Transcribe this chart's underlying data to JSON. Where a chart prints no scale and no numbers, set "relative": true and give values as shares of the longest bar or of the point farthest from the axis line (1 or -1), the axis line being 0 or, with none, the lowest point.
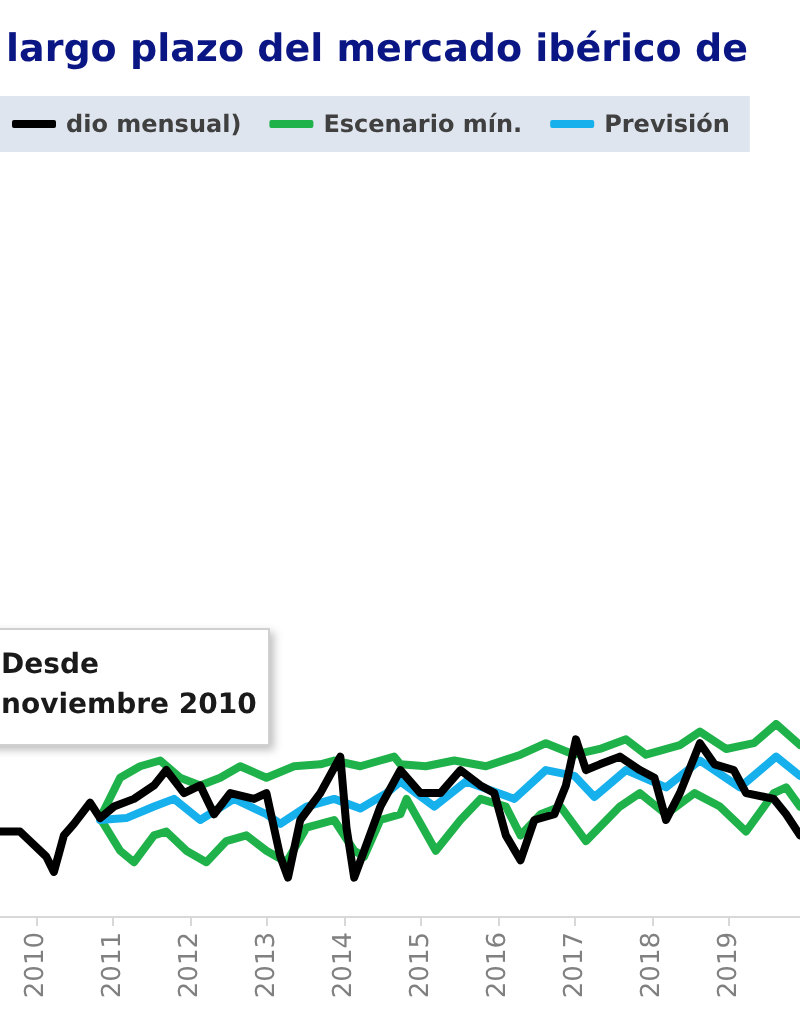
{
  "chart_data": {
    "type": "line",
    "title": "largo plazo del mercado ibérico de",
    "relative": true,
    "legend": "top",
    "xlim": [
      2009.53,
      2019.92
    ],
    "xticks": [
      2010,
      2011,
      2012,
      2013,
      2014,
      2015,
      2016,
      2017,
      2018,
      2019
    ],
    "annotations": [
      "Desde\nnoviembre 2010"
    ],
    "series": [
      {
        "name": "dio mensual)",
        "color": "#000000",
        "x": [
          2009.53,
          2009.79,
          2009.92,
          2010.13,
          2010.23,
          2010.36,
          2010.49,
          2010.7,
          2010.83,
          2011.01,
          2011.27,
          2011.53,
          2011.69,
          2011.92,
          2012.13,
          2012.31,
          2012.52,
          2012.83,
          2012.99,
          2013.17,
          2013.27,
          2013.43,
          2013.69,
          2013.95,
          2014.03,
          2014.13,
          2014.26,
          2014.47,
          2014.73,
          2014.99,
          2015.25,
          2015.51,
          2015.77,
          2015.95,
          2016.1,
          2016.29,
          2016.47,
          2016.73,
          2016.88,
          2017.01,
          2017.14,
          2017.32,
          2017.58,
          2017.84,
          2018.03,
          2018.18,
          2018.36,
          2018.62,
          2018.81,
          2019.06,
          2019.22,
          2019.58,
          2019.74,
          2019.92
        ],
        "values": [
          0.44,
          0.44,
          0.39,
          0.31,
          0.23,
          0.42,
          0.48,
          0.59,
          0.51,
          0.57,
          0.61,
          0.68,
          0.76,
          0.64,
          0.68,
          0.53,
          0.64,
          0.61,
          0.64,
          0.31,
          0.2,
          0.5,
          0.64,
          0.83,
          0.46,
          0.2,
          0.34,
          0.57,
          0.76,
          0.64,
          0.64,
          0.76,
          0.68,
          0.64,
          0.42,
          0.29,
          0.5,
          0.53,
          0.68,
          0.92,
          0.76,
          0.79,
          0.83,
          0.76,
          0.72,
          0.5,
          0.64,
          0.9,
          0.79,
          0.76,
          0.64,
          0.61,
          0.53,
          0.42
        ]
      },
      {
        "color": "#1fb24a",
        "x": [
          2010.83,
          2011.09,
          2011.35,
          2011.61,
          2011.87,
          2012.13,
          2012.39,
          2012.65,
          2012.99,
          2013.35,
          2013.69,
          2013.87,
          2014.21,
          2014.47,
          2014.65,
          2014.73,
          2015.06,
          2015.43,
          2015.84,
          2016.29,
          2016.62,
          2016.99,
          2017.32,
          2017.66,
          2017.92,
          2018.36,
          2018.62,
          2018.96,
          2019.32,
          2019.61,
          2019.92
        ],
        "values": [
          0.51,
          0.72,
          0.78,
          0.81,
          0.72,
          0.68,
          0.72,
          0.78,
          0.72,
          0.78,
          0.79,
          0.81,
          0.78,
          0.81,
          0.83,
          0.79,
          0.78,
          0.81,
          0.78,
          0.84,
          0.9,
          0.84,
          0.87,
          0.92,
          0.84,
          0.89,
          0.96,
          0.87,
          0.9,
          1.0,
          0.89
        ]
      },
      {
        "name": "Escenario mín.",
        "color": "#1fb24a",
        "x": [
          2010.83,
          2011.09,
          2011.27,
          2011.53,
          2011.69,
          2011.95,
          2012.21,
          2012.47,
          2012.73,
          2012.99,
          2013.25,
          2013.51,
          2013.87,
          2014.13,
          2014.26,
          2014.47,
          2014.73,
          2014.81,
          2015.19,
          2015.51,
          2015.77,
          2016.1,
          2016.29,
          2016.55,
          2016.81,
          2017.14,
          2017.58,
          2017.84,
          2018.18,
          2018.55,
          2018.88,
          2019.22,
          2019.58,
          2019.74,
          2019.92
        ],
        "values": [
          0.51,
          0.34,
          0.28,
          0.42,
          0.44,
          0.34,
          0.28,
          0.39,
          0.42,
          0.34,
          0.28,
          0.46,
          0.5,
          0.34,
          0.31,
          0.5,
          0.53,
          0.61,
          0.34,
          0.5,
          0.61,
          0.57,
          0.42,
          0.53,
          0.57,
          0.39,
          0.57,
          0.64,
          0.53,
          0.64,
          0.57,
          0.44,
          0.64,
          0.67,
          0.57
        ]
      },
      {
        "name": "Previsión",
        "color": "#16b0ec",
        "x": [
          2010.83,
          2011.17,
          2011.53,
          2011.79,
          2012.13,
          2012.57,
          2012.99,
          2013.17,
          2013.51,
          2013.87,
          2014.21,
          2014.55,
          2014.73,
          2015.17,
          2015.58,
          2016.21,
          2016.62,
          2016.99,
          2017.25,
          2017.66,
          2018.18,
          2018.62,
          2019.14,
          2019.61,
          2019.92
        ],
        "values": [
          0.5,
          0.51,
          0.57,
          0.61,
          0.5,
          0.61,
          0.53,
          0.48,
          0.57,
          0.61,
          0.56,
          0.64,
          0.7,
          0.57,
          0.7,
          0.61,
          0.76,
          0.73,
          0.62,
          0.76,
          0.67,
          0.81,
          0.67,
          0.83,
          0.73
        ]
      }
    ]
  }
}
